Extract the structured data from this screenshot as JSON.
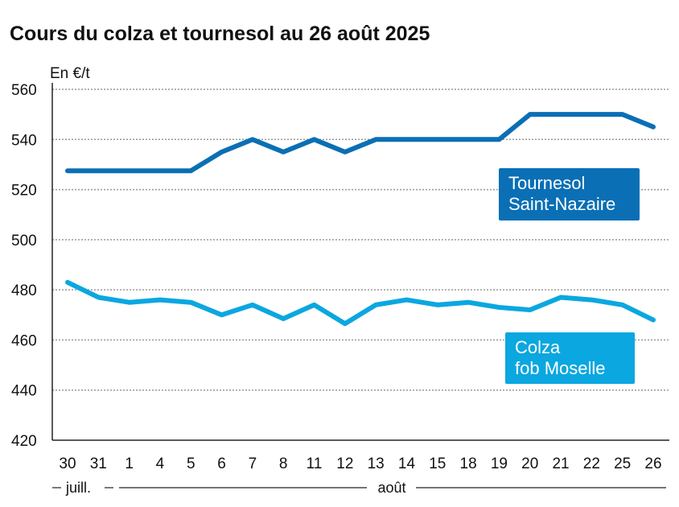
{
  "chart_data": {
    "type": "line",
    "title": "Cours du colza et tournesol au 26 août 2025",
    "ylabel": "En €/t",
    "ylim": [
      420,
      560
    ],
    "yticks": [
      420,
      440,
      460,
      480,
      500,
      520,
      540,
      560
    ],
    "grid": true,
    "categories": [
      "30",
      "31",
      "1",
      "4",
      "5",
      "6",
      "7",
      "8",
      "11",
      "12",
      "13",
      "14",
      "15",
      "18",
      "19",
      "20",
      "21",
      "22",
      "25",
      "26"
    ],
    "month_labels": {
      "july": "juill.",
      "august": "août"
    },
    "series": [
      {
        "name": "Tournesol Saint-Nazaire",
        "label_lines": [
          "Tournesol",
          "Saint-Nazaire"
        ],
        "color": "#0a6fb5",
        "values": [
          527.5,
          527.5,
          527.5,
          527.5,
          527.5,
          535,
          540,
          535,
          540,
          535,
          540,
          540,
          540,
          540,
          540,
          550,
          550,
          550,
          550,
          545
        ]
      },
      {
        "name": "Colza fob Moselle",
        "label_lines": [
          "Colza",
          "fob Moselle"
        ],
        "color": "#0ba7e0",
        "values": [
          483,
          477,
          475,
          476,
          475,
          470,
          474,
          468.5,
          474,
          466.5,
          474,
          476,
          474,
          475,
          473,
          472,
          477,
          476,
          474,
          468
        ]
      }
    ]
  }
}
